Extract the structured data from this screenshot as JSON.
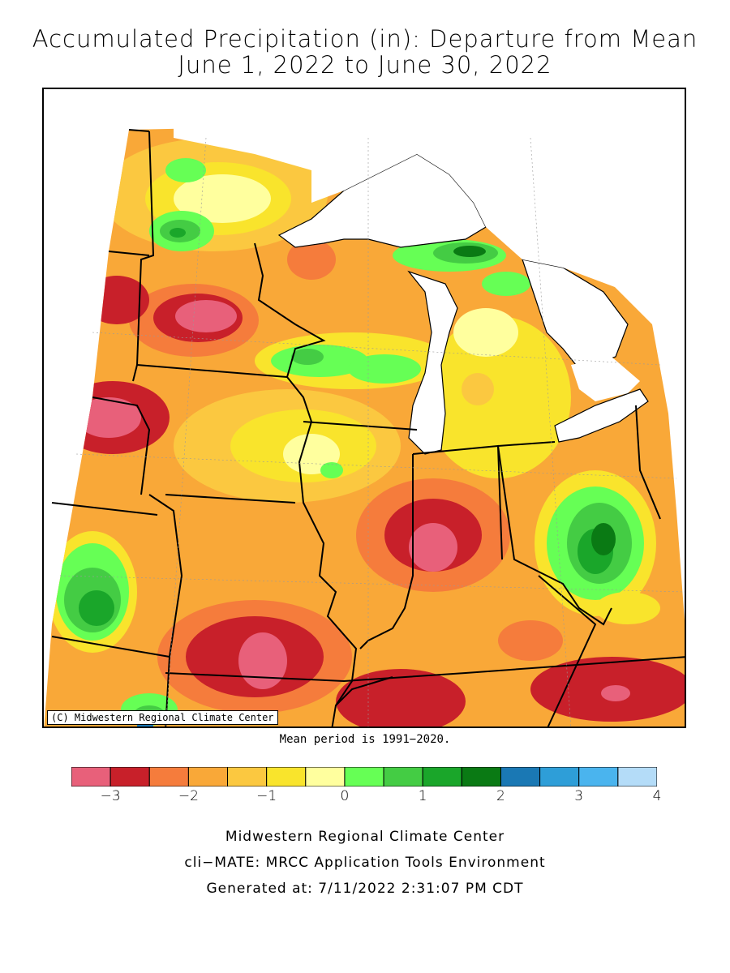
{
  "title": {
    "line1": "Accumulated Precipitation (in): Departure from Mean",
    "line2": "June 1, 2022 to June 30, 2022"
  },
  "map": {
    "credit": "(C) Midwestern Regional Climate Center",
    "regions": "Midwest US: MN, WI, MI, IA, IL, IN, OH, MO, KY (with surrounding states)"
  },
  "mean_period": "Mean period is 1991−2020.",
  "legend": {
    "colors": [
      "#e8607a",
      "#c8202a",
      "#f57c3c",
      "#f9a838",
      "#fbc840",
      "#f9e42c",
      "#ffff9e",
      "#66ff55",
      "#44cc44",
      "#1aa62a",
      "#0a7a14",
      "#1a78b4",
      "#2e9ed8",
      "#4ab4ee",
      "#b4dcf8"
    ],
    "tick_labels": [
      "−3",
      "−2",
      "−1",
      "0",
      "1",
      "2",
      "3",
      "4"
    ],
    "tick_values": [
      -3,
      -2,
      -1,
      0,
      1,
      2,
      3,
      4
    ]
  },
  "footer": {
    "line1": "Midwestern Regional Climate Center",
    "line2": "cli−MATE: MRCC Application Tools Environment",
    "line3": "Generated at: 7/11/2022 2:31:07 PM CDT"
  }
}
